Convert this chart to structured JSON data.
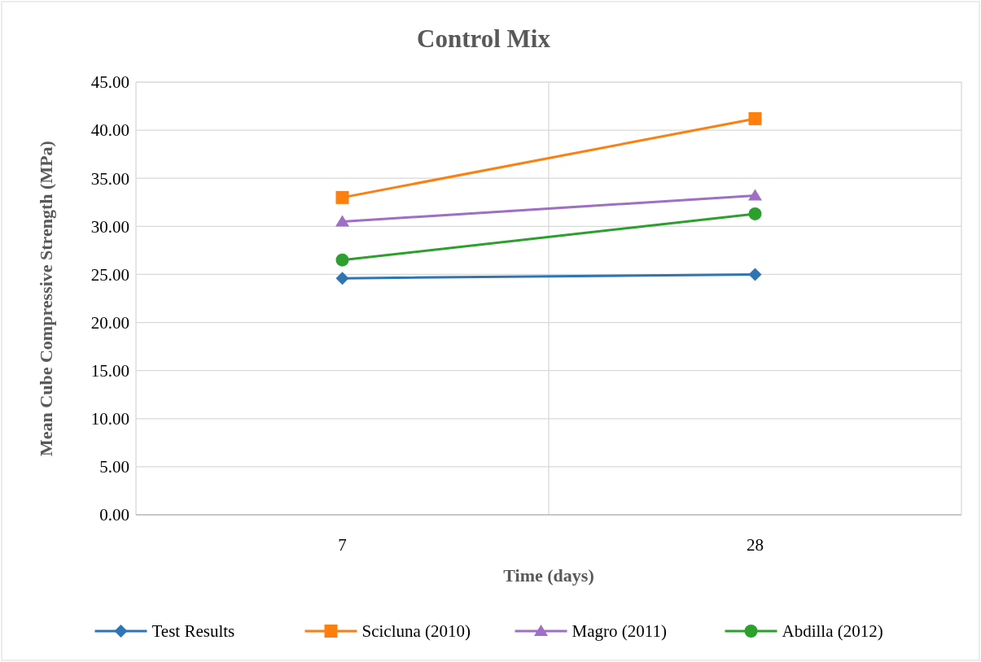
{
  "chart_data": {
    "type": "line",
    "title": "Control Mix",
    "xlabel": "Time (days)",
    "ylabel": "Mean Cube Compressive Strength (MPa)",
    "categories": [
      "7",
      "28"
    ],
    "series": [
      {
        "name": "Test Results",
        "color": "#2e75b6",
        "values": [
          24.6,
          25.0
        ],
        "marker": "diamond"
      },
      {
        "name": "Scicluna (2010)",
        "color": "#ff7f0e",
        "values": [
          33.0,
          41.2
        ],
        "marker": "square"
      },
      {
        "name": "Magro (2011)",
        "color": "#9e6fc4",
        "values": [
          30.5,
          33.2
        ],
        "marker": "triangle"
      },
      {
        "name": "Abdilla (2012)",
        "color": "#2ca02c",
        "values": [
          26.5,
          31.3
        ],
        "marker": "circle"
      }
    ],
    "ylim": [
      0,
      45
    ],
    "yticks": [
      {
        "value": 0,
        "label": "0.00"
      },
      {
        "value": 5,
        "label": "5.00"
      },
      {
        "value": 10,
        "label": "10.00"
      },
      {
        "value": 15,
        "label": "15.00"
      },
      {
        "value": 20,
        "label": "20.00"
      },
      {
        "value": 25,
        "label": "25.00"
      },
      {
        "value": 30,
        "label": "30.00"
      },
      {
        "value": 35,
        "label": "35.00"
      },
      {
        "value": 40,
        "label": "40.00"
      },
      {
        "value": 45,
        "label": "45.00"
      }
    ],
    "grid": true,
    "legend": "bottom",
    "line_style": "solid"
  }
}
